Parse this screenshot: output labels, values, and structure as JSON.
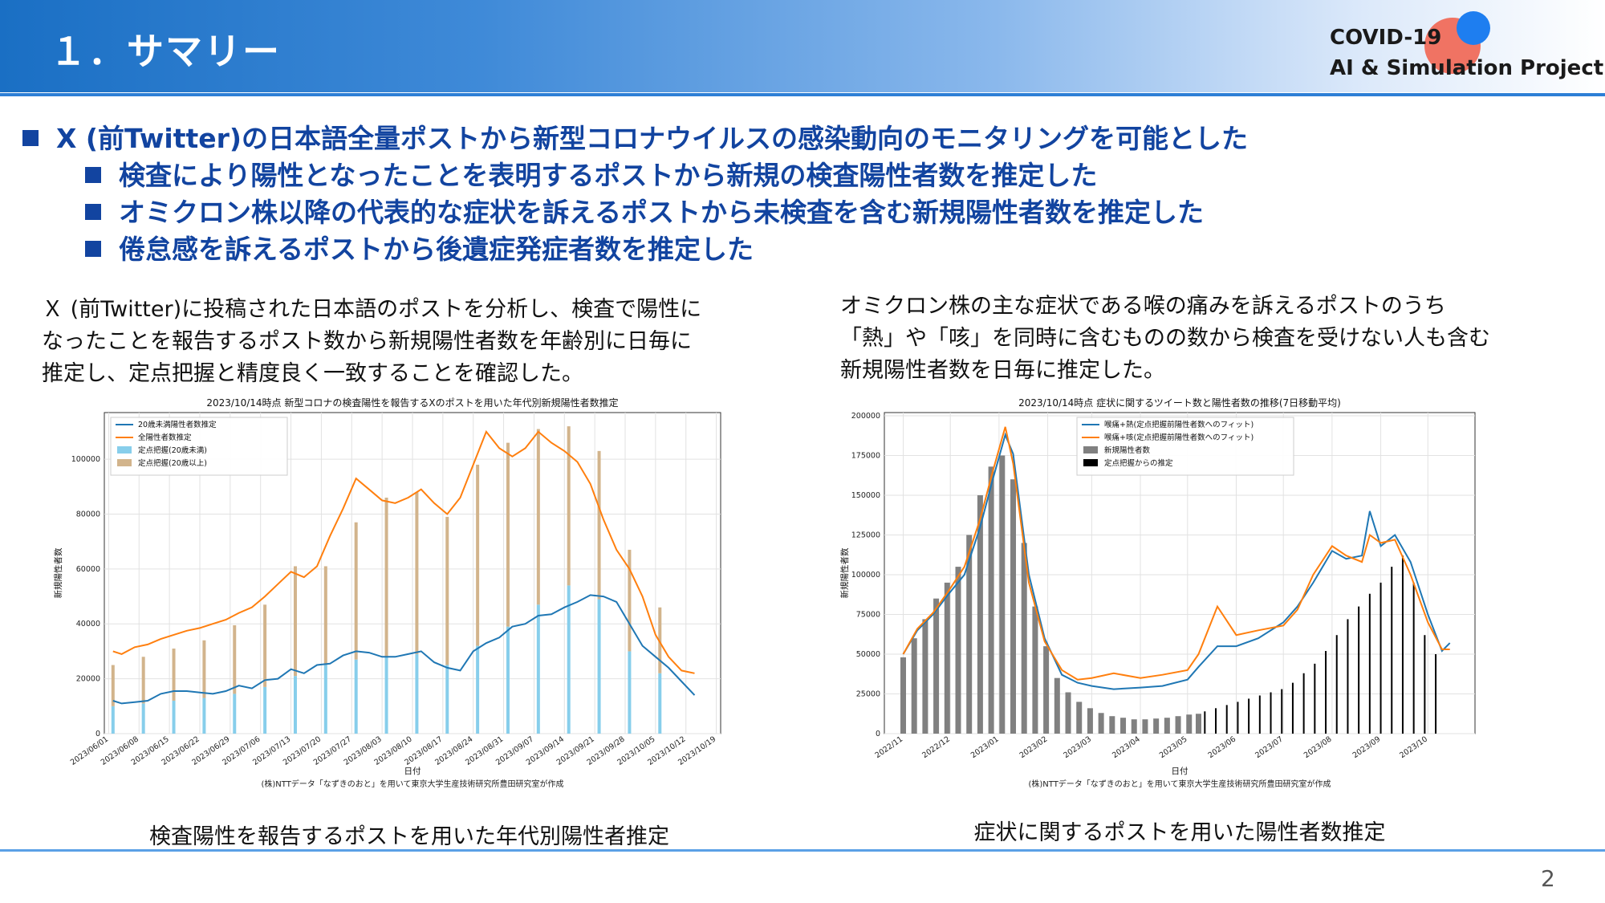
{
  "header": {
    "title": "１．サマリー",
    "logo_line1": "COVID-19",
    "logo_line2": "AI & Simulation Project"
  },
  "bullets": {
    "main": "X (前Twitter)の日本語全量ポストから新型コロナウイルスの感染動向のモニタリングを可能とした",
    "sub1": "検査により陽性となったことを表明するポストから新規の検査陽性者数を推定した",
    "sub2": "オミクロン株以降の代表的な症状を訴えるポストから未検査を含む新規陽性者数を推定した",
    "sub3": "倦怠感を訴えるポストから後遺症発症者数を推定した"
  },
  "left_panel": {
    "desc_line1": "Ｘ (前Twitter)に投稿された日本語のポストを分析し、検査で陽性に",
    "desc_line2": "なったことを報告するポスト数から新規陽性者数を年齢別に日毎に",
    "desc_line3": "推定し、定点把握と精度良く一致することを確認した。",
    "caption": "検査陽性を報告するポストを用いた年代別陽性者推定"
  },
  "right_panel": {
    "desc_line1": "オミクロン株の主な症状である喉の痛みを訴えるポストのうち",
    "desc_line2": "「熱」や「咳」を同時に含むものの数から検査を受けない人も含む",
    "desc_line3": "新規陽性者数を日毎に推定した。",
    "caption": "症状に関するポストを用いた陽性者数推定"
  },
  "page_number": "2",
  "colors": {
    "accent": "#1244a0",
    "header_blue": "#1a6fc4",
    "line_blue": "#1f77b4",
    "line_orange": "#ff7f0e",
    "bar_lightblue": "#87ceeb",
    "bar_tan": "#d2b48c"
  },
  "chart_data": [
    {
      "type": "line",
      "title": "2023/10/14時点 新型コロナの検査陽性を報告するXのポストを用いた年代別新規陽性者数推定",
      "xlabel": "日付",
      "ylabel": "新規陽性者数",
      "source": "(株)NTTデータ「なずきのおと」を用いて東京大学生産技術研究所豊田研究室が作成",
      "x_ticks": [
        "2023/06/01",
        "2023/06/08",
        "2023/06/15",
        "2023/06/22",
        "2023/06/29",
        "2023/07/06",
        "2023/07/13",
        "2023/07/20",
        "2023/07/27",
        "2023/08/03",
        "2023/08/10",
        "2023/08/17",
        "2023/08/24",
        "2023/08/31",
        "2023/09/07",
        "2023/09/14",
        "2023/09/21",
        "2023/09/28",
        "2023/10/05",
        "2023/10/12",
        "2023/10/19"
      ],
      "y_ticks": [
        0,
        20000,
        40000,
        60000,
        80000,
        100000
      ],
      "ylim": [
        0,
        117000
      ],
      "legend_position": "upper left",
      "legend": [
        "20歳未満陽性者数推定",
        "全陽性者数推定",
        "定点把握(20歳未満)",
        "定点把握(20歳以上)"
      ],
      "series": [
        {
          "name": "20歳未満陽性者数推定",
          "kind": "line",
          "x": [
            "2023/06/02",
            "2023/06/04",
            "2023/06/07",
            "2023/06/10",
            "2023/06/13",
            "2023/06/16",
            "2023/06/19",
            "2023/06/22",
            "2023/06/25",
            "2023/06/28",
            "2023/07/01",
            "2023/07/04",
            "2023/07/07",
            "2023/07/10",
            "2023/07/13",
            "2023/07/16",
            "2023/07/19",
            "2023/07/22",
            "2023/07/25",
            "2023/07/28",
            "2023/07/31",
            "2023/08/03",
            "2023/08/06",
            "2023/08/09",
            "2023/08/12",
            "2023/08/15",
            "2023/08/18",
            "2023/08/21",
            "2023/08/24",
            "2023/08/27",
            "2023/08/30",
            "2023/09/02",
            "2023/09/05",
            "2023/09/08",
            "2023/09/11",
            "2023/09/14",
            "2023/09/17",
            "2023/09/20",
            "2023/09/23",
            "2023/09/26",
            "2023/09/29",
            "2023/10/02",
            "2023/10/05",
            "2023/10/08",
            "2023/10/11",
            "2023/10/14"
          ],
          "values": [
            12000,
            11000,
            11500,
            12000,
            14500,
            15500,
            15500,
            15000,
            14500,
            15500,
            17500,
            16500,
            19500,
            20000,
            23500,
            22000,
            25000,
            25500,
            28500,
            30000,
            29500,
            28000,
            28000,
            29000,
            30000,
            26000,
            24000,
            23000,
            30000,
            33000,
            35000,
            39000,
            40000,
            43000,
            43500,
            46000,
            48000,
            50500,
            50000,
            48000,
            40000,
            32000,
            28000,
            24000,
            19000,
            14000
          ]
        },
        {
          "name": "全陽性者数推定",
          "kind": "line",
          "x": [
            "2023/06/02",
            "2023/06/04",
            "2023/06/07",
            "2023/06/10",
            "2023/06/13",
            "2023/06/16",
            "2023/06/19",
            "2023/06/22",
            "2023/06/25",
            "2023/06/28",
            "2023/07/01",
            "2023/07/04",
            "2023/07/07",
            "2023/07/10",
            "2023/07/13",
            "2023/07/16",
            "2023/07/19",
            "2023/07/22",
            "2023/07/25",
            "2023/07/28",
            "2023/07/31",
            "2023/08/03",
            "2023/08/06",
            "2023/08/09",
            "2023/08/12",
            "2023/08/15",
            "2023/08/18",
            "2023/08/21",
            "2023/08/24",
            "2023/08/27",
            "2023/08/30",
            "2023/09/02",
            "2023/09/05",
            "2023/09/08",
            "2023/09/11",
            "2023/09/14",
            "2023/09/17",
            "2023/09/20",
            "2023/09/23",
            "2023/09/26",
            "2023/09/29",
            "2023/10/02",
            "2023/10/05",
            "2023/10/08",
            "2023/10/11",
            "2023/10/14"
          ],
          "values": [
            30000,
            29000,
            31500,
            32500,
            34500,
            36000,
            37500,
            38500,
            40000,
            41500,
            44000,
            46000,
            50000,
            54500,
            59000,
            57000,
            61000,
            72000,
            82000,
            93000,
            89000,
            85000,
            84000,
            86000,
            89000,
            84000,
            80000,
            86000,
            98000,
            110000,
            104000,
            101000,
            104000,
            110000,
            106000,
            103000,
            99000,
            91000,
            78000,
            67000,
            60000,
            50000,
            36000,
            28000,
            23000,
            22000
          ]
        },
        {
          "name": "定点把握(20歳未満)",
          "kind": "bar",
          "x": [
            "2023/06/02",
            "2023/06/09",
            "2023/06/16",
            "2023/06/23",
            "2023/06/30",
            "2023/07/07",
            "2023/07/14",
            "2023/07/21",
            "2023/07/28",
            "2023/08/04",
            "2023/08/11",
            "2023/08/18",
            "2023/08/25",
            "2023/09/01",
            "2023/09/08",
            "2023/09/15",
            "2023/09/22",
            "2023/09/29",
            "2023/10/06"
          ],
          "values": [
            10000,
            11000,
            12000,
            13000,
            14500,
            17000,
            21000,
            25000,
            27000,
            28000,
            29000,
            25000,
            32000,
            39000,
            47000,
            54000,
            49000,
            30000,
            22000
          ]
        },
        {
          "name": "定点把握(20歳以上)",
          "kind": "bar",
          "x": [
            "2023/06/02",
            "2023/06/09",
            "2023/06/16",
            "2023/06/23",
            "2023/06/30",
            "2023/07/07",
            "2023/07/14",
            "2023/07/21",
            "2023/07/28",
            "2023/08/04",
            "2023/08/11",
            "2023/08/18",
            "2023/08/25",
            "2023/09/01",
            "2023/09/08",
            "2023/09/15",
            "2023/09/22",
            "2023/09/29",
            "2023/10/06"
          ],
          "values": [
            15000,
            17000,
            19000,
            21000,
            25000,
            30000,
            40000,
            36000,
            50000,
            58000,
            59000,
            54000,
            66000,
            67000,
            64000,
            58000,
            54000,
            37000,
            24000
          ]
        }
      ]
    },
    {
      "type": "line",
      "title": "2023/10/14時点 症状に関するツイート数と陽性者数の推移(7日移動平均)",
      "xlabel": "日付",
      "ylabel": "新規陽性者数",
      "source": "(株)NTTデータ「なずきのおと」を用いて東京大学生産技術研究所豊田研究室が作成",
      "x_ticks": [
        "2022/11",
        "2022/12",
        "2023/01",
        "2023/02",
        "2023/03",
        "2023/04",
        "2023/05",
        "2023/06",
        "2023/07",
        "2023/08",
        "2023/09",
        "2023/10"
      ],
      "y_ticks": [
        0,
        25000,
        50000,
        75000,
        100000,
        125000,
        150000,
        175000,
        200000
      ],
      "ylim": [
        0,
        202000
      ],
      "legend_position": "upper left",
      "legend": [
        "喉痛+熱(定点把握前陽性者数へのフィット)",
        "喉痛+咳(定点把握前陽性者数へのフィット)",
        "新規陽性者数",
        "定点把握からの推定"
      ],
      "series": [
        {
          "name": "喉痛+熱(定点把握前陽性者数へのフィット)",
          "kind": "line",
          "x": [
            "2022-11-01",
            "2022-11-10",
            "2022-11-20",
            "2022-11-30",
            "2022-12-10",
            "2022-12-20",
            "2022-12-28",
            "2023-01-05",
            "2023-01-10",
            "2023-01-20",
            "2023-01-30",
            "2023-02-10",
            "2023-02-20",
            "2023-03-01",
            "2023-03-15",
            "2023-04-01",
            "2023-04-15",
            "2023-05-01",
            "2023-05-08",
            "2023-05-20",
            "2023-06-01",
            "2023-06-15",
            "2023-07-01",
            "2023-07-10",
            "2023-07-20",
            "2023-08-01",
            "2023-08-10",
            "2023-08-20",
            "2023-08-25",
            "2023-09-01",
            "2023-09-10",
            "2023-09-20",
            "2023-10-01",
            "2023-10-10",
            "2023-10-15"
          ],
          "values": [
            50000,
            65000,
            75000,
            88000,
            100000,
            130000,
            160000,
            188000,
            176000,
            100000,
            60000,
            37000,
            32000,
            30000,
            28000,
            29000,
            30000,
            34000,
            42000,
            55000,
            55000,
            60000,
            70000,
            80000,
            95000,
            115000,
            110000,
            112000,
            140000,
            118000,
            125000,
            108000,
            75000,
            52000,
            57000
          ]
        },
        {
          "name": "喉痛+咳(定点把握前陽性者数へのフィット)",
          "kind": "line",
          "x": [
            "2022-11-01",
            "2022-11-10",
            "2022-11-20",
            "2022-11-30",
            "2022-12-10",
            "2022-12-20",
            "2022-12-28",
            "2023-01-05",
            "2023-01-10",
            "2023-01-20",
            "2023-01-30",
            "2023-02-10",
            "2023-02-20",
            "2023-03-01",
            "2023-03-15",
            "2023-04-01",
            "2023-04-15",
            "2023-05-01",
            "2023-05-08",
            "2023-05-20",
            "2023-06-01",
            "2023-06-15",
            "2023-07-01",
            "2023-07-10",
            "2023-07-20",
            "2023-08-01",
            "2023-08-10",
            "2023-08-20",
            "2023-08-25",
            "2023-09-01",
            "2023-09-10",
            "2023-09-20",
            "2023-10-01",
            "2023-10-10",
            "2023-10-15"
          ],
          "values": [
            50000,
            66000,
            76000,
            90000,
            105000,
            135000,
            165000,
            193000,
            170000,
            95000,
            58000,
            40000,
            34000,
            35000,
            38000,
            35000,
            37000,
            40000,
            50000,
            80000,
            62000,
            65000,
            68000,
            78000,
            100000,
            118000,
            112000,
            108000,
            125000,
            120000,
            122000,
            100000,
            70000,
            53000,
            53000
          ]
        },
        {
          "name": "新規陽性者数",
          "kind": "bar",
          "x": [
            "2022-11-01",
            "2022-11-08",
            "2022-11-15",
            "2022-11-22",
            "2022-11-29",
            "2022-12-06",
            "2022-12-13",
            "2022-12-20",
            "2022-12-27",
            "2023-01-03",
            "2023-01-10",
            "2023-01-17",
            "2023-01-24",
            "2023-01-31",
            "2023-02-07",
            "2023-02-14",
            "2023-02-21",
            "2023-02-28",
            "2023-03-07",
            "2023-03-14",
            "2023-03-21",
            "2023-03-28",
            "2023-04-04",
            "2023-04-11",
            "2023-04-18",
            "2023-04-25",
            "2023-05-02",
            "2023-05-08"
          ],
          "values": [
            48000,
            60000,
            72000,
            85000,
            95000,
            105000,
            125000,
            150000,
            168000,
            175000,
            160000,
            120000,
            80000,
            55000,
            35000,
            26000,
            20000,
            16000,
            13000,
            11000,
            10000,
            9000,
            9000,
            9500,
            10000,
            11000,
            12000,
            12500
          ]
        },
        {
          "name": "定点把握からの推定",
          "kind": "bar",
          "x": [
            "2023-05-12",
            "2023-05-19",
            "2023-05-26",
            "2023-06-02",
            "2023-06-09",
            "2023-06-16",
            "2023-06-23",
            "2023-06-30",
            "2023-07-07",
            "2023-07-14",
            "2023-07-21",
            "2023-07-28",
            "2023-08-04",
            "2023-08-11",
            "2023-08-18",
            "2023-08-25",
            "2023-09-01",
            "2023-09-08",
            "2023-09-15",
            "2023-09-22",
            "2023-09-29",
            "2023-10-06"
          ],
          "values": [
            14000,
            16000,
            18000,
            20000,
            22000,
            24000,
            26000,
            28000,
            32000,
            38000,
            44000,
            52000,
            62000,
            72000,
            80000,
            88000,
            95000,
            105000,
            112000,
            95000,
            62000,
            50000
          ]
        }
      ]
    }
  ]
}
